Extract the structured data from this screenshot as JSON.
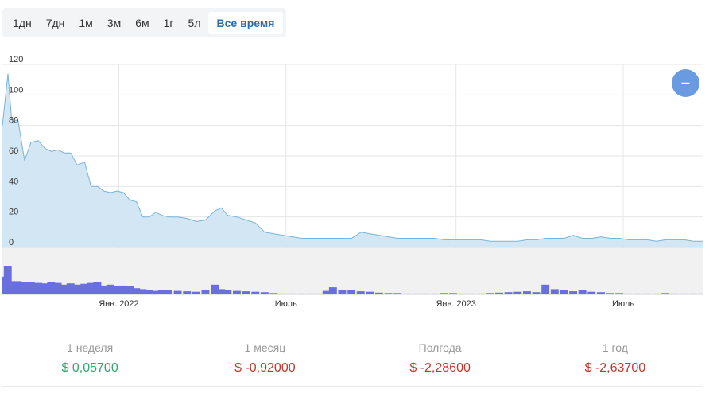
{
  "ranges": [
    "1дн",
    "7дн",
    "1м",
    "3м",
    "6м",
    "1г",
    "5л",
    "Все время"
  ],
  "active_range": "Все время",
  "zoom_button": "–",
  "stats": [
    {
      "label": "1 неделя",
      "value": "$ 0,05700",
      "trend": "up"
    },
    {
      "label": "1 месяц",
      "value": "$ -0,92000",
      "trend": "down"
    },
    {
      "label": "Полгода",
      "value": "$ -2,28600",
      "trend": "down"
    },
    {
      "label": "1 год",
      "value": "$ -2,63700",
      "trend": "down"
    }
  ],
  "colors": {
    "area_fill": "#d2e7f3",
    "area_line": "#78b4d8",
    "volume_bars": "#6a6fe0",
    "volume_panel": "#f1f1f1",
    "grid": "#e6e6e6",
    "positive": "#2ea869",
    "negative": "#c0392b",
    "active_range": "#2a6db3"
  },
  "chart_data": {
    "type": "area",
    "ylim": [
      0,
      120
    ],
    "y_ticks": [
      "0",
      "20",
      "40",
      "60",
      "80",
      "100",
      "120"
    ],
    "x_ticks": [
      {
        "label": "Янв. 2022",
        "x": "2022-01-01"
      },
      {
        "label": "Июль",
        "x": "2022-07-01"
      },
      {
        "label": "Янв. 2023",
        "x": "2023-01-01"
      },
      {
        "label": "Июль",
        "x": "2023-07-01"
      }
    ],
    "grid": true,
    "price": {
      "x": [
        "2021-08-28",
        "2021-09-03",
        "2021-09-07",
        "2021-09-14",
        "2021-09-21",
        "2021-09-28",
        "2021-10-06",
        "2021-10-13",
        "2021-10-20",
        "2021-10-27",
        "2021-11-03",
        "2021-11-10",
        "2021-11-17",
        "2021-11-25",
        "2021-12-02",
        "2021-12-09",
        "2021-12-16",
        "2021-12-23",
        "2021-12-30",
        "2022-01-06",
        "2022-01-13",
        "2022-01-20",
        "2022-01-27",
        "2022-02-03",
        "2022-02-10",
        "2022-02-17",
        "2022-02-24",
        "2022-03-06",
        "2022-03-16",
        "2022-03-26",
        "2022-04-05",
        "2022-04-15",
        "2022-04-22",
        "2022-04-29",
        "2022-05-09",
        "2022-05-19",
        "2022-05-29",
        "2022-06-08",
        "2022-06-18",
        "2022-06-28",
        "2022-07-08",
        "2022-07-18",
        "2022-07-28",
        "2022-08-07",
        "2022-08-14",
        "2022-08-21",
        "2022-08-31",
        "2022-09-10",
        "2022-09-20",
        "2022-09-30",
        "2022-10-10",
        "2022-10-20",
        "2022-10-30",
        "2022-11-09",
        "2022-11-19",
        "2022-11-29",
        "2022-12-09",
        "2022-12-19",
        "2022-12-29",
        "2023-01-08",
        "2023-01-18",
        "2023-01-28",
        "2023-02-07",
        "2023-02-17",
        "2023-02-27",
        "2023-03-09",
        "2023-03-19",
        "2023-03-29",
        "2023-04-08",
        "2023-04-18",
        "2023-04-28",
        "2023-05-08",
        "2023-05-18",
        "2023-05-28",
        "2023-06-07",
        "2023-06-17",
        "2023-06-27",
        "2023-07-07",
        "2023-07-17",
        "2023-07-27",
        "2023-08-06",
        "2023-08-16",
        "2023-08-26",
        "2023-09-05",
        "2023-09-15",
        "2023-09-25"
      ],
      "y": [
        80,
        114,
        84,
        83,
        57,
        69,
        70,
        65,
        63,
        64,
        62,
        62,
        54,
        56,
        40,
        40,
        37,
        36,
        37,
        36,
        31,
        30,
        20,
        20,
        23,
        21,
        20,
        20,
        19,
        17,
        18,
        24,
        26,
        21,
        20,
        18,
        16,
        10,
        9,
        8,
        7,
        6,
        6,
        6,
        6,
        6,
        6,
        6,
        10,
        9,
        8,
        7,
        6,
        6,
        6,
        6,
        6,
        5,
        5,
        5,
        5,
        5,
        4,
        4,
        4,
        4,
        5,
        5,
        6,
        6,
        6,
        8,
        6,
        6,
        7,
        6,
        6,
        5,
        5,
        5,
        4,
        5,
        5,
        5,
        4,
        4
      ]
    },
    "volume": {
      "x": [
        "2021-08-28",
        "2021-09-03",
        "2021-09-07",
        "2021-09-14",
        "2021-09-21",
        "2021-09-28",
        "2021-10-06",
        "2021-10-13",
        "2021-10-20",
        "2021-10-27",
        "2021-11-03",
        "2021-11-10",
        "2021-11-17",
        "2021-11-25",
        "2021-12-02",
        "2021-12-09",
        "2021-12-16",
        "2021-12-23",
        "2021-12-30",
        "2022-01-06",
        "2022-01-13",
        "2022-01-20",
        "2022-01-27",
        "2022-02-03",
        "2022-02-10",
        "2022-02-17",
        "2022-02-24",
        "2022-03-06",
        "2022-03-16",
        "2022-03-26",
        "2022-04-05",
        "2022-04-15",
        "2022-04-22",
        "2022-04-29",
        "2022-05-09",
        "2022-05-19",
        "2022-05-29",
        "2022-06-08",
        "2022-06-18",
        "2022-06-28",
        "2022-07-08",
        "2022-07-18",
        "2022-07-28",
        "2022-08-07",
        "2022-08-14",
        "2022-08-21",
        "2022-08-31",
        "2022-09-10",
        "2022-09-20",
        "2022-09-30",
        "2022-10-10",
        "2022-10-20",
        "2022-10-30",
        "2022-11-09",
        "2022-11-19",
        "2022-11-29",
        "2022-12-09",
        "2022-12-19",
        "2022-12-29",
        "2023-01-08",
        "2023-01-18",
        "2023-01-28",
        "2023-02-07",
        "2023-02-17",
        "2023-02-27",
        "2023-03-09",
        "2023-03-19",
        "2023-03-29",
        "2023-04-08",
        "2023-04-18",
        "2023-04-28",
        "2023-05-08",
        "2023-05-18",
        "2023-05-28",
        "2023-06-07",
        "2023-06-17",
        "2023-06-27",
        "2023-07-07",
        "2023-07-17",
        "2023-07-27",
        "2023-08-06",
        "2023-08-16",
        "2023-08-26",
        "2023-09-05",
        "2023-09-15",
        "2023-09-25"
      ],
      "y": [
        40,
        65,
        30,
        30,
        28,
        27,
        26,
        25,
        28,
        26,
        22,
        25,
        22,
        24,
        26,
        28,
        20,
        22,
        18,
        20,
        18,
        14,
        12,
        10,
        8,
        9,
        10,
        8,
        7,
        6,
        9,
        22,
        12,
        9,
        8,
        7,
        6,
        5,
        3,
        2,
        2,
        2,
        2,
        2,
        8,
        16,
        10,
        9,
        7,
        6,
        4,
        3,
        3,
        2,
        2,
        2,
        2,
        3,
        3,
        2,
        2,
        2,
        3,
        4,
        5,
        6,
        7,
        5,
        22,
        12,
        9,
        7,
        9,
        6,
        5,
        3,
        3,
        2,
        2,
        2,
        2,
        3,
        2,
        2,
        2,
        2
      ]
    }
  }
}
